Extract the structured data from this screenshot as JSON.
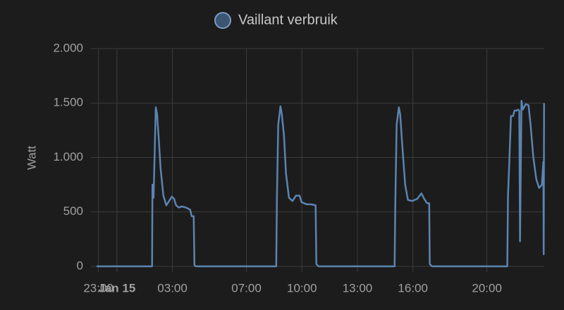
{
  "chart_data": {
    "type": "line",
    "legend": "Vaillant verbruik",
    "ylabel": "Watt",
    "grid": true,
    "xlim": [
      -1.1,
      23.1
    ],
    "xticks": [
      {
        "value": -1,
        "label": "23:00"
      },
      {
        "value": 0,
        "label": "Jan 15"
      },
      {
        "value": 3,
        "label": "03:00"
      },
      {
        "value": 7,
        "label": "07:00"
      },
      {
        "value": 10,
        "label": "10:00"
      },
      {
        "value": 13,
        "label": "13:00"
      },
      {
        "value": 16,
        "label": "16:00"
      },
      {
        "value": 20,
        "label": "20:00"
      }
    ],
    "ylim": [
      0,
      2000
    ],
    "yticks": [
      0,
      500,
      {
        "value": 1000,
        "label": "1.000"
      },
      {
        "value": 1500,
        "label": "1.500"
      },
      {
        "value": 2000,
        "label": "2.000"
      }
    ],
    "series": [
      {
        "name": "Vaillant verbruik",
        "color": "#5b84b1",
        "x": [
          -1.1,
          1.9,
          1.92,
          1.98,
          2.1,
          2.17,
          2.25,
          2.36,
          2.51,
          2.67,
          2.82,
          2.97,
          3.09,
          3.2,
          3.35,
          3.5,
          3.73,
          3.96,
          4.04,
          4.15,
          4.19,
          4.27,
          8.61,
          8.65,
          8.72,
          8.84,
          8.91,
          9.03,
          9.14,
          9.3,
          9.49,
          9.68,
          9.87,
          9.98,
          10.25,
          10.51,
          10.74,
          10.78,
          10.9,
          15.01,
          15.05,
          15.12,
          15.24,
          15.31,
          15.43,
          15.58,
          15.73,
          15.96,
          16.23,
          16.46,
          16.61,
          16.76,
          16.88,
          16.91,
          17.03,
          21.1,
          21.14,
          21.22,
          21.3,
          21.41,
          21.49,
          21.6,
          21.68,
          21.75,
          21.79,
          21.87,
          21.94,
          22.1,
          22.25,
          22.36,
          22.51,
          22.67,
          22.82,
          22.97,
          23.05,
          23.07,
          23.09
        ],
        "values": [
          0,
          0,
          750,
          630,
          1460,
          1400,
          1200,
          900,
          650,
          560,
          600,
          640,
          620,
          560,
          540,
          550,
          540,
          520,
          460,
          460,
          10,
          0,
          0,
          650,
          1300,
          1470,
          1400,
          1200,
          850,
          630,
          600,
          650,
          650,
          590,
          570,
          570,
          560,
          20,
          0,
          0,
          600,
          1300,
          1460,
          1400,
          1100,
          750,
          610,
          600,
          620,
          670,
          620,
          580,
          580,
          20,
          0,
          0,
          650,
          1000,
          1380,
          1380,
          1430,
          1430,
          1440,
          1430,
          230,
          1520,
          1440,
          1490,
          1480,
          1300,
          1000,
          800,
          720,
          750,
          960,
          110,
          1500
        ]
      }
    ]
  }
}
